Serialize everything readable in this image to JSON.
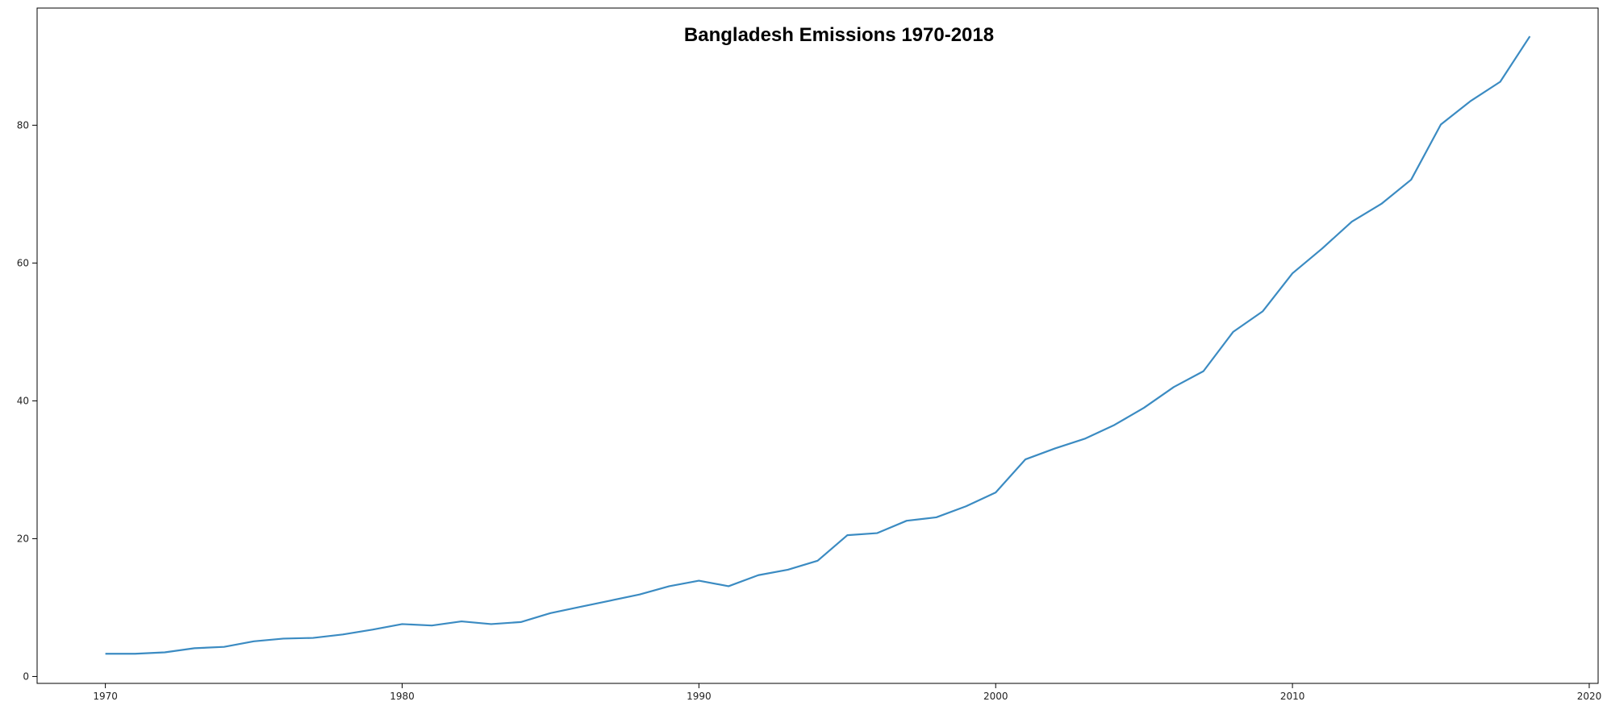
{
  "chart_data": {
    "type": "line",
    "title": "Bangladesh Emissions 1970-2018",
    "xlabel": "",
    "ylabel": "",
    "xlim": [
      1967.7,
      2020.3
    ],
    "ylim": [
      -1,
      97
    ],
    "xticks": [
      1970,
      1980,
      1990,
      2000,
      2010,
      2020
    ],
    "yticks": [
      0,
      20,
      40,
      60,
      80
    ],
    "grid": false,
    "line_color": "#3b8bc2",
    "series": [
      {
        "x": [
          1970,
          1971,
          1972,
          1973,
          1974,
          1975,
          1976,
          1977,
          1978,
          1979,
          1980,
          1981,
          1982,
          1983,
          1984,
          1985,
          1986,
          1987,
          1988,
          1989,
          1990,
          1991,
          1992,
          1993,
          1994,
          1995,
          1996,
          1997,
          1998,
          1999,
          2000,
          2001,
          2002,
          2003,
          2004,
          2005,
          2006,
          2007,
          2008,
          2009,
          2010,
          2011,
          2012,
          2013,
          2014,
          2015,
          2016,
          2017,
          2018
        ],
        "values": [
          3.3,
          3.3,
          3.5,
          4.1,
          4.3,
          5.1,
          5.5,
          5.6,
          6.1,
          6.8,
          7.6,
          7.4,
          8.0,
          7.6,
          7.9,
          9.2,
          10.1,
          11.0,
          11.9,
          13.1,
          13.9,
          13.1,
          14.7,
          15.5,
          16.8,
          20.5,
          20.8,
          22.6,
          23.1,
          24.7,
          26.7,
          31.5,
          33.1,
          34.5,
          36.5,
          39.0,
          42.0,
          44.3,
          50.0,
          53.0,
          58.5,
          62.1,
          66.0,
          68.6,
          72.1,
          80.1,
          83.5,
          86.3,
          92.9
        ]
      }
    ]
  }
}
